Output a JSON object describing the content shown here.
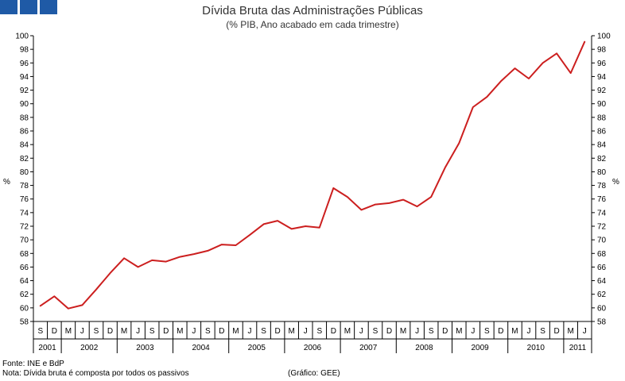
{
  "header": {
    "title": "Dívida Bruta das Administrações Públicas",
    "subtitle": "(% PIB, Ano acabado em cada trimestre)"
  },
  "footer": {
    "source": "Fonte: INE e BdP",
    "note": "Nota: Dívida bruta é composta por todos os passivos",
    "credit": "(Gráfico: GEE)"
  },
  "colors": {
    "line": "#cc1f1f",
    "axis": "#000000",
    "brand": "#1f5aa6"
  },
  "chart_data": {
    "type": "line",
    "title": "Dívida Bruta das Administrações Públicas",
    "subtitle": "(% PIB, Ano acabado em cada trimestre)",
    "ylabel": "%",
    "ylim": [
      58,
      100
    ],
    "ytick_step": 2,
    "grid": false,
    "quarters": [
      "S",
      "D",
      "M",
      "J",
      "S",
      "D",
      "M",
      "J",
      "S",
      "D",
      "M",
      "J",
      "S",
      "D",
      "M",
      "J",
      "S",
      "D",
      "M",
      "J",
      "S",
      "D",
      "M",
      "J",
      "S",
      "D",
      "M",
      "J",
      "S",
      "D",
      "M",
      "J",
      "S",
      "D",
      "M",
      "J",
      "S",
      "D",
      "M",
      "J"
    ],
    "years": [
      {
        "label": "2001",
        "count": 2
      },
      {
        "label": "2002",
        "count": 4
      },
      {
        "label": "2003",
        "count": 4
      },
      {
        "label": "2004",
        "count": 4
      },
      {
        "label": "2005",
        "count": 4
      },
      {
        "label": "2006",
        "count": 4
      },
      {
        "label": "2007",
        "count": 4
      },
      {
        "label": "2008",
        "count": 4
      },
      {
        "label": "2009",
        "count": 4
      },
      {
        "label": "2010",
        "count": 4
      },
      {
        "label": "2011",
        "count": 2
      }
    ],
    "series": [
      {
        "name": "Dívida Bruta",
        "values": [
          60.3,
          61.7,
          59.9,
          60.4,
          62.7,
          65.1,
          67.3,
          66.0,
          67.0,
          66.8,
          67.5,
          67.9,
          68.4,
          69.3,
          69.2,
          70.7,
          72.3,
          72.8,
          71.6,
          72.0,
          71.8,
          77.6,
          76.3,
          74.4,
          75.2,
          75.4,
          75.9,
          74.9,
          76.3,
          80.6,
          84.2,
          89.5,
          91.0,
          93.3,
          95.2,
          93.7,
          96.0,
          97.4,
          94.5,
          99.1
        ]
      }
    ]
  }
}
